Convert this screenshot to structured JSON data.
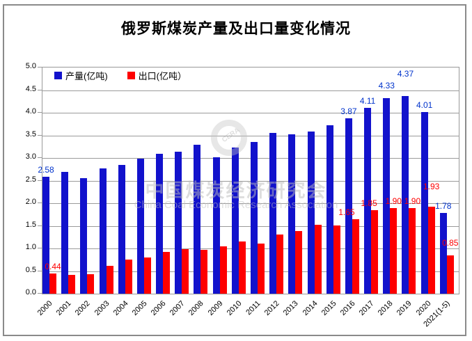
{
  "title": "俄罗斯煤炭产量及出口量变化情况",
  "watermark": {
    "logo_text": "CERA",
    "line1": "中国煤炭经济研究会",
    "line2": "China Coal Economic Research Association"
  },
  "colors": {
    "production_bar": "#1212cc",
    "production_label": "#0033cc",
    "export_bar": "#fe0000",
    "export_label": "#fe0000",
    "gridline": "#9a9a9a",
    "outer_border": "#8a8a8a"
  },
  "chart_data": {
    "type": "bar",
    "title": "俄罗斯煤炭产量及出口量变化情况",
    "categories": [
      "2000",
      "2001",
      "2002",
      "2003",
      "2004",
      "2005",
      "2006",
      "2007",
      "2008",
      "2009",
      "2010",
      "2011",
      "2012",
      "2013",
      "2014",
      "2015",
      "2016",
      "2017",
      "2018",
      "2019",
      "2020",
      "2021(1-5)"
    ],
    "series": [
      {
        "name": "产量(亿吨)",
        "name_en": "production",
        "color": "#1212cc",
        "label_color": "#0033cc",
        "values": [
          2.58,
          2.7,
          2.56,
          2.77,
          2.84,
          2.99,
          3.1,
          3.14,
          3.29,
          3.02,
          3.23,
          3.36,
          3.55,
          3.52,
          3.58,
          3.73,
          3.87,
          4.11,
          4.33,
          4.37,
          4.01,
          1.78
        ],
        "labels": [
          {
            "i": 0,
            "text": "2.58"
          },
          {
            "i": 16,
            "text": "3.87"
          },
          {
            "i": 17,
            "text": "4.11"
          },
          {
            "i": 18,
            "text": "4.33",
            "dy": -8
          },
          {
            "i": 19,
            "text": "4.37",
            "dy": -22
          },
          {
            "i": 20,
            "text": "4.01"
          },
          {
            "i": 21,
            "text": "1.78"
          }
        ]
      },
      {
        "name": "出口(亿吨）",
        "name_en": "export",
        "color": "#fe0000",
        "label_color": "#fe0000",
        "values": [
          0.44,
          0.42,
          0.43,
          0.61,
          0.76,
          0.8,
          0.92,
          0.98,
          0.97,
          1.05,
          1.16,
          1.11,
          1.31,
          1.39,
          1.52,
          1.51,
          1.65,
          1.85,
          1.9,
          1.9,
          1.93,
          0.85
        ],
        "labels": [
          {
            "i": 0,
            "text": "0.44"
          },
          {
            "i": 16,
            "text": "1.65",
            "dx": -13
          },
          {
            "i": 17,
            "text": "1.85",
            "dx": -8
          },
          {
            "i": 18,
            "text": "1.90"
          },
          {
            "i": 19,
            "text": "1.90"
          },
          {
            "i": 20,
            "text": "1.93",
            "dy": -19
          },
          {
            "i": 21,
            "text": "0.85",
            "dy": -8
          }
        ]
      }
    ],
    "ylim": [
      0,
      5
    ],
    "ytick_step": 0.5,
    "yticks": [
      "5.0",
      "4.5",
      "4.0",
      "3.5",
      "3.0",
      "2.5",
      "2.0",
      "1.5",
      "1.0",
      "0.5",
      "0.0"
    ],
    "grid": true,
    "legend_position": "top-left-inside"
  }
}
